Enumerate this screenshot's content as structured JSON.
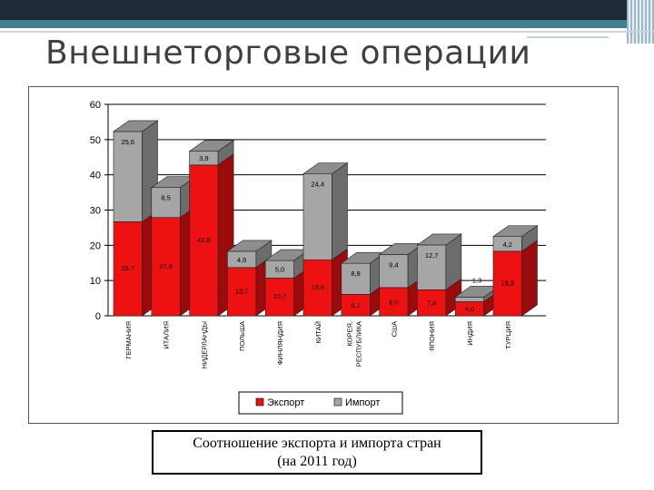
{
  "slide": {
    "title": "Внешнеторговые операции",
    "caption_line1": "Соотношение экспорта и импорта стран",
    "caption_line2": "(на 2011 год)"
  },
  "colors": {
    "export": "#ee1111",
    "import": "#a6a6a6",
    "header_dark": "#1f2a38",
    "header_teal": "#3f7f8f"
  },
  "chart_data": {
    "type": "bar",
    "stacked": true,
    "three_d": true,
    "title": "",
    "xlabel": "",
    "ylabel": "",
    "ylim": [
      0,
      60
    ],
    "yticks": [
      0,
      10,
      20,
      30,
      40,
      50,
      60
    ],
    "grid": true,
    "legend_position": "bottom",
    "categories": [
      "ГЕРМАНИЯ",
      "ИТАЛИЯ",
      "НИДЕРЛАНДЫ",
      "ПОЛЬША",
      "ФИНЛЯНДИЯ",
      "КИТАЙ",
      "КОРЕЯ, РЕСПУБЛИКА",
      "США",
      "ЯПОНИЯ",
      "ИНДИЯ",
      "ТУРЦИЯ"
    ],
    "series": [
      {
        "name": "Экспорт",
        "values": [
          26.7,
          27.9,
          42.8,
          13.7,
          10.7,
          15.9,
          6.1,
          8.0,
          7.4,
          4.0,
          18.3
        ],
        "labels": [
          "26,7",
          "27,9",
          "42,8",
          "13,7",
          "10,7",
          "15,9",
          "6,1",
          "8,0",
          "7,4",
          "4,0",
          "18,3"
        ]
      },
      {
        "name": "Импорт",
        "values": [
          25.6,
          8.5,
          3.9,
          4.6,
          5.0,
          24.4,
          8.8,
          9.4,
          12.7,
          1.3,
          4.2
        ],
        "labels": [
          "25,6",
          "8,5",
          "3,9",
          "4,6",
          "5,0",
          "24,4",
          "8,8",
          "9,4",
          "12,7",
          "1,3",
          "4,2"
        ]
      }
    ]
  }
}
